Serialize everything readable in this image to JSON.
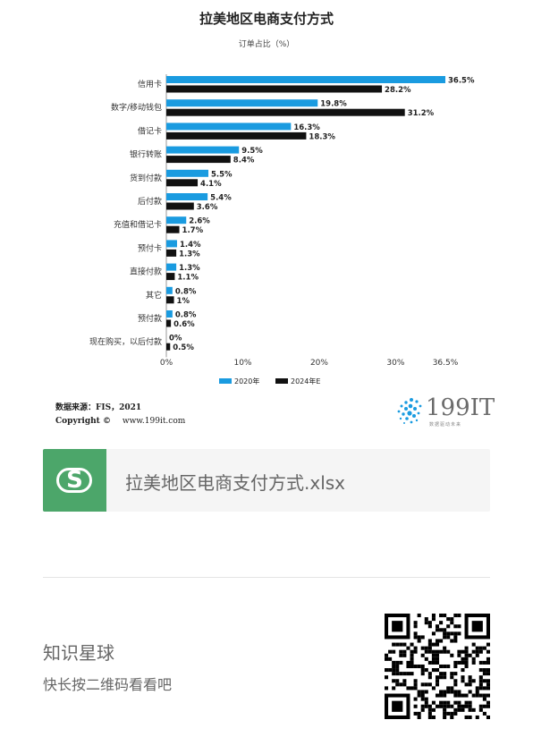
{
  "chart_data": {
    "type": "bar",
    "orientation": "horizontal",
    "title": "拉美地区电商支付方式",
    "subtitle": "订单占比（%）",
    "categories": [
      "信用卡",
      "数字/移动钱包",
      "借记卡",
      "银行转账",
      "货到付款",
      "后付款",
      "充值和借记卡",
      "预付卡",
      "直接付款",
      "其它",
      "预付款",
      "现在购买，以后付款"
    ],
    "series": [
      {
        "name": "2020年",
        "color": "#1a9be0",
        "values": [
          36.5,
          19.8,
          16.3,
          9.5,
          5.5,
          5.4,
          2.6,
          1.4,
          1.3,
          0.8,
          0.8,
          0
        ],
        "labels": [
          "36.5%",
          "19.8%",
          "16.3%",
          "9.5%",
          "5.5%",
          "5.4%",
          "2.6%",
          "1.4%",
          "1.3%",
          "0.8%",
          "0.8%",
          "0%"
        ]
      },
      {
        "name": "2024年E",
        "color": "#111111",
        "values": [
          28.2,
          31.2,
          18.3,
          8.4,
          4.1,
          3.6,
          1.7,
          1.3,
          1.1,
          1,
          0.6,
          0.5
        ],
        "labels": [
          "28.2%",
          "31.2%",
          "18.3%",
          "8.4%",
          "4.1%",
          "3.6%",
          "1.7%",
          "1.3%",
          "1.1%",
          "1%",
          "0.6%",
          "0.5%"
        ]
      }
    ],
    "x_ticks": [
      0,
      10,
      20,
      30,
      36.5
    ],
    "x_tick_labels": [
      "0%",
      "10%",
      "20%",
      "30%",
      "36.5%"
    ],
    "xlim": [
      0,
      36.5
    ],
    "legend_placement": "bottom",
    "grid": false
  },
  "footer": {
    "source": "数据来源：FIS，2021",
    "copyright_label": "Copyright ©",
    "copyright_url": "www.199it.com",
    "logo_text": "199IT",
    "logo_tagline": "数据驱动未来"
  },
  "file_card": {
    "icon_letter": "S",
    "file_name": "拉美地区电商支付方式.xlsx",
    "accent_color": "#4ca66a"
  },
  "promo": {
    "title": "知识星球",
    "subtitle": "快长按二维码看看吧"
  }
}
